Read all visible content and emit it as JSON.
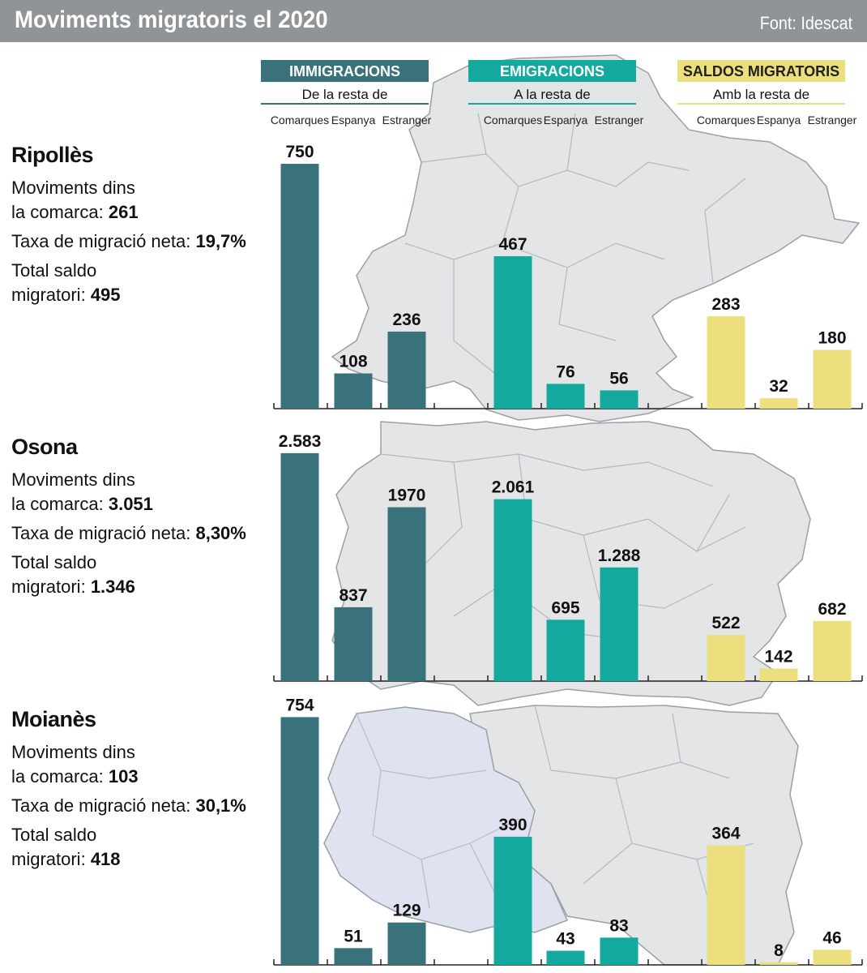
{
  "header": {
    "title": "Moviments migratoris el 2020",
    "source": "Font: Idescat"
  },
  "colors": {
    "header_bg": "#8f9596",
    "immigracions": "#3a727c",
    "emigracions": "#14a99f",
    "saldos": "#ece07e",
    "map_fill": "#e3e5e6",
    "map_highlight": "#dfe2f0",
    "map_stroke": "#9aa0a3"
  },
  "groups": [
    {
      "label": "IMMIGRACIONS",
      "sublabel": "De la resta de",
      "color": "#3a727c",
      "text_color": "#ffffff"
    },
    {
      "label": "EMIGRACIONS",
      "sublabel": "A la resta de",
      "color": "#14a99f",
      "text_color": "#ffffff"
    },
    {
      "label": "SALDOS MIGRATORIS",
      "sublabel": "Amb la resta de",
      "color": "#ece07e",
      "text_color": "#222222"
    }
  ],
  "regions": [
    {
      "name": "Ripollès",
      "moviments_label_1": "Moviments dins",
      "moviments_label_2": "la comarca:",
      "moviments_value": "261",
      "taxa_label": "Taxa de migració neta:",
      "taxa_value": "19,7%",
      "saldo_label_1": "Total saldo",
      "saldo_label_2": "migratori:",
      "saldo_value": "495"
    },
    {
      "name": "Osona",
      "moviments_label_1": "Moviments dins",
      "moviments_label_2": "la comarca:",
      "moviments_value": "3.051",
      "taxa_label": "Taxa de migració neta:",
      "taxa_value": "8,30%",
      "saldo_label_1": "Total saldo",
      "saldo_label_2": "migratori:",
      "saldo_value": "1.346"
    },
    {
      "name": "Moianès",
      "moviments_label_1": "Moviments dins",
      "moviments_label_2": "la comarca:",
      "moviments_value": "103",
      "taxa_label": "Taxa de migració neta:",
      "taxa_value": "30,1%",
      "saldo_label_1": "Total saldo",
      "saldo_label_2": "migratori:",
      "saldo_value": "418"
    }
  ],
  "chart_data": [
    {
      "type": "bar",
      "title": "Ripollès",
      "categories": [
        "Comarques",
        "Espanya",
        "Estranger"
      ],
      "series": [
        {
          "name": "IMMIGRACIONS",
          "values": [
            750,
            108,
            236
          ],
          "labels": [
            "750",
            "108",
            "236"
          ]
        },
        {
          "name": "EMIGRACIONS",
          "values": [
            467,
            76,
            56
          ],
          "labels": [
            "467",
            "76",
            "56"
          ]
        },
        {
          "name": "SALDOS MIGRATORIS",
          "values": [
            283,
            32,
            180
          ],
          "labels": [
            "283",
            "32",
            "180"
          ]
        }
      ],
      "ylim": [
        0,
        760
      ]
    },
    {
      "type": "bar",
      "title": "Osona",
      "categories": [
        "Comarques",
        "Espanya",
        "Estranger"
      ],
      "series": [
        {
          "name": "IMMIGRACIONS",
          "values": [
            2583,
            837,
            1970
          ],
          "labels": [
            "2.583",
            "837",
            "1970"
          ]
        },
        {
          "name": "EMIGRACIONS",
          "values": [
            2061,
            695,
            1288
          ],
          "labels": [
            "2.061",
            "695",
            "1.288"
          ]
        },
        {
          "name": "SALDOS MIGRATORIS",
          "values": [
            522,
            142,
            682
          ],
          "labels": [
            "522",
            "142",
            "682"
          ]
        }
      ],
      "ylim": [
        0,
        2600
      ]
    },
    {
      "type": "bar",
      "title": "Moianès",
      "categories": [
        "Comarques",
        "Espanya",
        "Estranger"
      ],
      "series": [
        {
          "name": "IMMIGRACIONS",
          "values": [
            754,
            51,
            129
          ],
          "labels": [
            "754",
            "51",
            "129"
          ]
        },
        {
          "name": "EMIGRACIONS",
          "values": [
            390,
            43,
            83
          ],
          "labels": [
            "390",
            "43",
            "83"
          ]
        },
        {
          "name": "SALDOS MIGRATORIS",
          "values": [
            364,
            8,
            46
          ],
          "labels": [
            "364",
            "8",
            "46"
          ]
        }
      ],
      "ylim": [
        0,
        760
      ]
    }
  ]
}
